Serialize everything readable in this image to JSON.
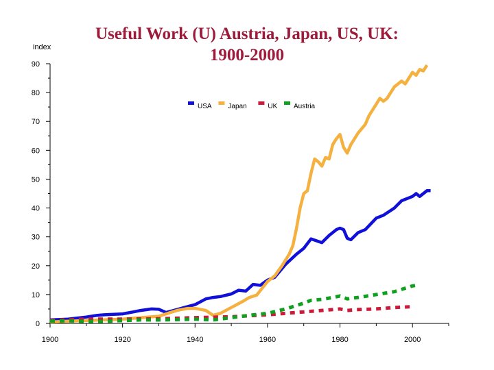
{
  "chart_data": {
    "type": "line",
    "title": [
      "Useful Work (U) Austria, Japan, US, UK:",
      "1900-2000"
    ],
    "ylabel": "index",
    "xlim": [
      1900,
      2010
    ],
    "ylim": [
      0,
      90
    ],
    "x_ticks": [
      1900,
      1920,
      1940,
      1960,
      1980,
      2000
    ],
    "y_ticks": [
      0,
      10,
      20,
      30,
      40,
      50,
      60,
      70,
      80,
      90
    ],
    "grid": false,
    "legend_position": "top-center",
    "series": [
      {
        "name": "USA",
        "color": "#1010d8",
        "dash": "solid",
        "points": [
          [
            1900,
            1.2
          ],
          [
            1905,
            1.5
          ],
          [
            1910,
            2.2
          ],
          [
            1913,
            2.8
          ],
          [
            1915,
            3.0
          ],
          [
            1920,
            3.3
          ],
          [
            1923,
            4.0
          ],
          [
            1925,
            4.5
          ],
          [
            1928,
            5.0
          ],
          [
            1930,
            4.9
          ],
          [
            1932,
            3.8
          ],
          [
            1935,
            4.8
          ],
          [
            1937,
            5.5
          ],
          [
            1940,
            6.5
          ],
          [
            1943,
            8.5
          ],
          [
            1945,
            9.0
          ],
          [
            1947,
            9.3
          ],
          [
            1950,
            10.2
          ],
          [
            1952,
            11.5
          ],
          [
            1954,
            11.2
          ],
          [
            1956,
            13.5
          ],
          [
            1958,
            13.2
          ],
          [
            1960,
            15.0
          ],
          [
            1962,
            16.0
          ],
          [
            1965,
            20.5
          ],
          [
            1968,
            24.0
          ],
          [
            1970,
            26.0
          ],
          [
            1972,
            29.3
          ],
          [
            1975,
            28.0
          ],
          [
            1977,
            30.5
          ],
          [
            1979,
            32.5
          ],
          [
            1980,
            33.0
          ],
          [
            1981,
            32.5
          ],
          [
            1982,
            29.5
          ],
          [
            1983,
            29.0
          ],
          [
            1985,
            31.5
          ],
          [
            1987,
            32.5
          ],
          [
            1990,
            36.5
          ],
          [
            1992,
            37.5
          ],
          [
            1995,
            40.0
          ],
          [
            1997,
            42.5
          ],
          [
            2000,
            44.0
          ],
          [
            2001,
            45.0
          ],
          [
            2002,
            44.0
          ],
          [
            2004,
            46.0
          ],
          [
            2005,
            46.0
          ]
        ]
      },
      {
        "name": "Japan",
        "color": "#f5b13f",
        "dash": "solid",
        "points": [
          [
            1900,
            0.5
          ],
          [
            1910,
            1.0
          ],
          [
            1920,
            1.5
          ],
          [
            1925,
            2.0
          ],
          [
            1930,
            2.5
          ],
          [
            1935,
            4.5
          ],
          [
            1938,
            5.2
          ],
          [
            1940,
            5.2
          ],
          [
            1943,
            4.5
          ],
          [
            1945,
            2.8
          ],
          [
            1947,
            3.5
          ],
          [
            1950,
            5.5
          ],
          [
            1953,
            7.5
          ],
          [
            1955,
            9.0
          ],
          [
            1957,
            9.8
          ],
          [
            1960,
            14.5
          ],
          [
            1962,
            16.5
          ],
          [
            1964,
            20.0
          ],
          [
            1966,
            24.0
          ],
          [
            1967,
            27.0
          ],
          [
            1968,
            33.0
          ],
          [
            1969,
            40.0
          ],
          [
            1970,
            45.0
          ],
          [
            1971,
            46.0
          ],
          [
            1972,
            52.0
          ],
          [
            1973,
            57.0
          ],
          [
            1974,
            56.0
          ],
          [
            1975,
            54.5
          ],
          [
            1976,
            57.5
          ],
          [
            1977,
            57.0
          ],
          [
            1978,
            62.0
          ],
          [
            1979,
            64.0
          ],
          [
            1980,
            65.5
          ],
          [
            1981,
            61.0
          ],
          [
            1982,
            59.0
          ],
          [
            1983,
            62.0
          ],
          [
            1985,
            66.0
          ],
          [
            1987,
            69.0
          ],
          [
            1988,
            72.0
          ],
          [
            1990,
            76.0
          ],
          [
            1991,
            78.0
          ],
          [
            1992,
            77.0
          ],
          [
            1993,
            78.0
          ],
          [
            1995,
            82.0
          ],
          [
            1996,
            83.0
          ],
          [
            1997,
            84.0
          ],
          [
            1998,
            83.0
          ],
          [
            2000,
            87.0
          ],
          [
            2001,
            86.0
          ],
          [
            2002,
            88.0
          ],
          [
            2003,
            87.5
          ],
          [
            2004,
            89.5
          ]
        ]
      },
      {
        "name": "UK",
        "color": "#cc1a3a",
        "dash": "dashed",
        "points": [
          [
            1900,
            1.0
          ],
          [
            1910,
            1.5
          ],
          [
            1920,
            1.5
          ],
          [
            1930,
            1.6
          ],
          [
            1940,
            2.0
          ],
          [
            1950,
            2.3
          ],
          [
            1960,
            3.0
          ],
          [
            1965,
            3.5
          ],
          [
            1970,
            4.0
          ],
          [
            1975,
            4.5
          ],
          [
            1980,
            5.0
          ],
          [
            1982,
            4.5
          ],
          [
            1985,
            4.8
          ],
          [
            1990,
            5.0
          ],
          [
            1995,
            5.5
          ],
          [
            2000,
            5.8
          ]
        ]
      },
      {
        "name": "Austria",
        "color": "#10a020",
        "dash": "dashed",
        "points": [
          [
            1900,
            0.8
          ],
          [
            1905,
            0.9
          ],
          [
            1910,
            0.7
          ],
          [
            1915,
            0.7
          ],
          [
            1920,
            1.0
          ],
          [
            1925,
            1.2
          ],
          [
            1930,
            1.2
          ],
          [
            1935,
            1.3
          ],
          [
            1940,
            1.5
          ],
          [
            1945,
            1.2
          ],
          [
            1950,
            2.0
          ],
          [
            1955,
            2.8
          ],
          [
            1960,
            3.5
          ],
          [
            1965,
            5.0
          ],
          [
            1970,
            7.0
          ],
          [
            1972,
            8.0
          ],
          [
            1975,
            8.3
          ],
          [
            1978,
            9.0
          ],
          [
            1980,
            9.5
          ],
          [
            1982,
            8.5
          ],
          [
            1985,
            9.0
          ],
          [
            1990,
            10.0
          ],
          [
            1995,
            11.0
          ],
          [
            2000,
            13.0
          ],
          [
            2001,
            13.2
          ]
        ]
      }
    ]
  }
}
